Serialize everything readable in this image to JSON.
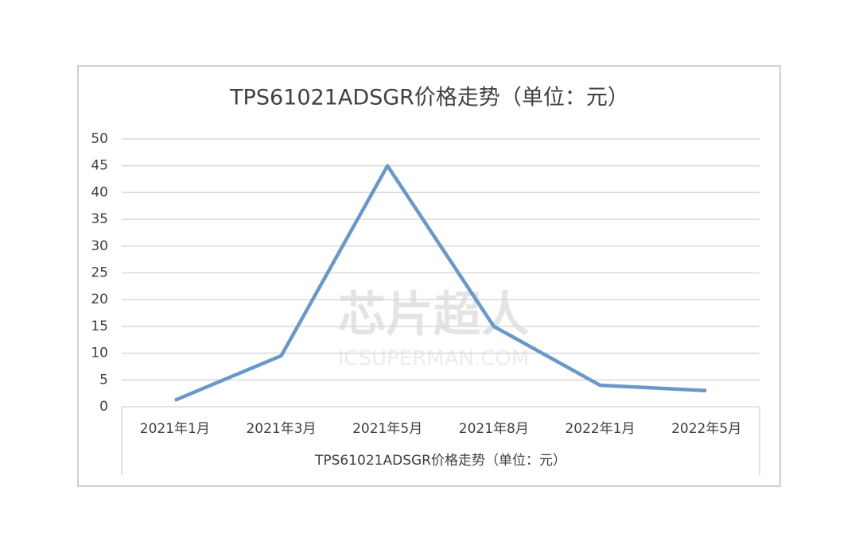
{
  "chart_data": {
    "type": "line",
    "title": "TPS61021ADSGR价格走势（单位：元）",
    "x_label": "TPS61021ADSGR价格走势（单位：元）",
    "watermark": [
      "芯片超人",
      "ICSUPERMAN.COM"
    ],
    "categories": [
      "2021年1月",
      "2021年3月",
      "2021年5月",
      "2021年8月",
      "2022年1月",
      "2022年5月"
    ],
    "series": [
      {
        "name": "TPS61021ADSGR价格走势（单位：元）",
        "color": "#6a98c8",
        "values": [
          1.2,
          9.5,
          45,
          15,
          4,
          3
        ]
      }
    ],
    "ylim": [
      0,
      50
    ],
    "yticks": [
      0,
      5,
      10,
      15,
      20,
      25,
      30,
      35,
      40,
      45,
      50
    ],
    "grid": true
  }
}
